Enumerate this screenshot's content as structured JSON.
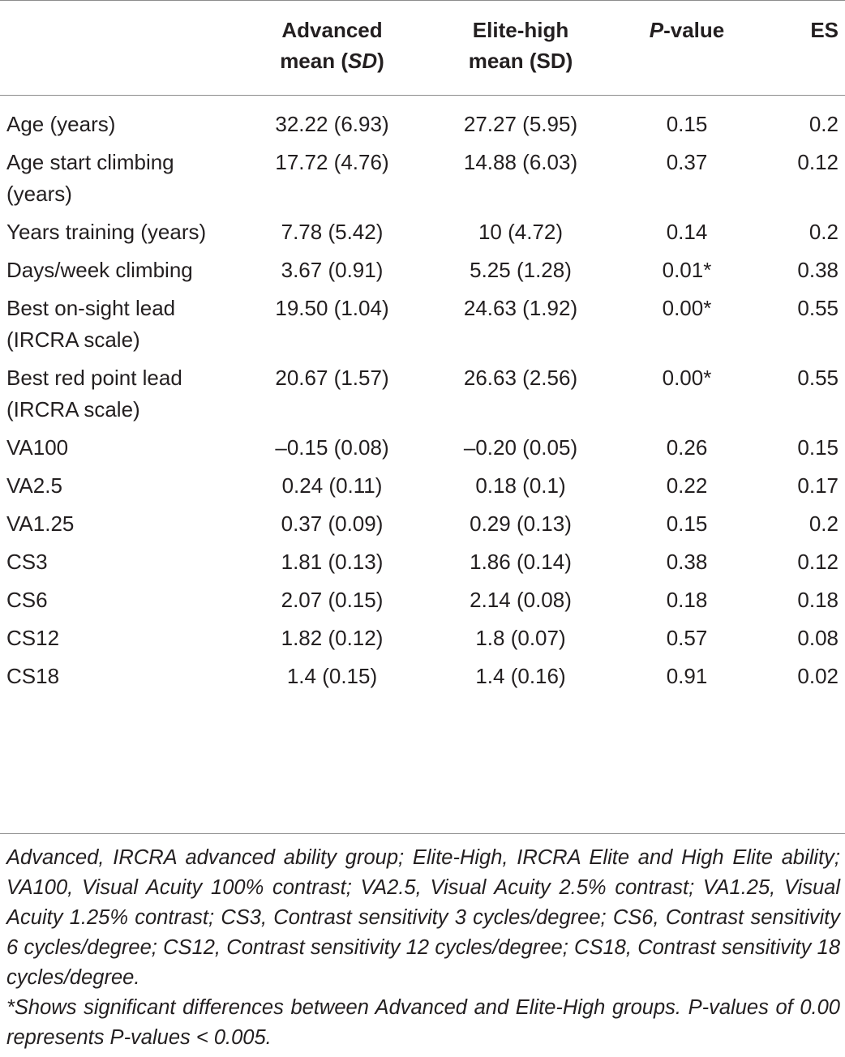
{
  "table": {
    "headers": [
      "",
      "Advanced mean (SD)",
      "Elite-high mean (SD)",
      "P-value",
      "ES"
    ],
    "header_parts": {
      "advanced_line1": "Advanced",
      "advanced_line2_pre": "mean (",
      "advanced_line2_ital": "SD",
      "advanced_line2_post": ")",
      "elite_line1": "Elite-high",
      "elite_line2": "mean (SD)",
      "pvalue_ital": "P",
      "pvalue_rest": "-value",
      "es": "ES"
    },
    "rows": [
      {
        "label": "Age (years)",
        "advanced": "32.22 (6.93)",
        "elite": "27.27 (5.95)",
        "p": "0.15",
        "es": "0.2"
      },
      {
        "label": "Age start climbing (years)",
        "advanced": "17.72 (4.76)",
        "elite": "14.88 (6.03)",
        "p": "0.37",
        "es": "0.12"
      },
      {
        "label": "Years training (years)",
        "advanced": "7.78 (5.42)",
        "elite": "10 (4.72)",
        "p": "0.14",
        "es": "0.2"
      },
      {
        "label": "Days/week climbing",
        "advanced": "3.67 (0.91)",
        "elite": "5.25 (1.28)",
        "p": "0.01*",
        "es": "0.38"
      },
      {
        "label": "Best on-sight lead (IRCRA scale)",
        "advanced": "19.50 (1.04)",
        "elite": "24.63 (1.92)",
        "p": "0.00*",
        "es": "0.55"
      },
      {
        "label": "Best red point lead (IRCRA scale)",
        "advanced": "20.67 (1.57)",
        "elite": "26.63 (2.56)",
        "p": "0.00*",
        "es": "0.55"
      },
      {
        "label": "VA100",
        "advanced": "–0.15 (0.08)",
        "elite": "–0.20 (0.05)",
        "p": "0.26",
        "es": "0.15"
      },
      {
        "label": "VA2.5",
        "advanced": "0.24 (0.11)",
        "elite": "0.18 (0.1)",
        "p": "0.22",
        "es": "0.17"
      },
      {
        "label": "VA1.25",
        "advanced": "0.37 (0.09)",
        "elite": "0.29 (0.13)",
        "p": "0.15",
        "es": "0.2"
      },
      {
        "label": "CS3",
        "advanced": "1.81 (0.13)",
        "elite": "1.86 (0.14)",
        "p": "0.38",
        "es": "0.12"
      },
      {
        "label": "CS6",
        "advanced": "2.07 (0.15)",
        "elite": "2.14 (0.08)",
        "p": "0.18",
        "es": "0.18"
      },
      {
        "label": "CS12",
        "advanced": "1.82 (0.12)",
        "elite": "1.8 (0.07)",
        "p": "0.57",
        "es": "0.08"
      },
      {
        "label": "CS18",
        "advanced": "1.4 (0.15)",
        "elite": "1.4 (0.16)",
        "p": "0.91",
        "es": "0.02"
      }
    ]
  },
  "footnotes": {
    "abbreviations": "Advanced, IRCRA advanced ability group; Elite-High, IRCRA Elite and High Elite ability; VA100, Visual Acuity 100% contrast; VA2.5, Visual Acuity 2.5% contrast; VA1.25, Visual Acuity 1.25% contrast; CS3, Contrast sensitivity 3 cycles/degree; CS6, Contrast sensitivity 6 cycles/degree; CS12, Contrast sensitivity 12 cycles/degree; CS18, Contrast sensitivity 18 cycles/degree.",
    "significance": "*Shows significant differences between Advanced and Elite-High groups. P-values of 0.00 represents P-values < 0.005."
  }
}
